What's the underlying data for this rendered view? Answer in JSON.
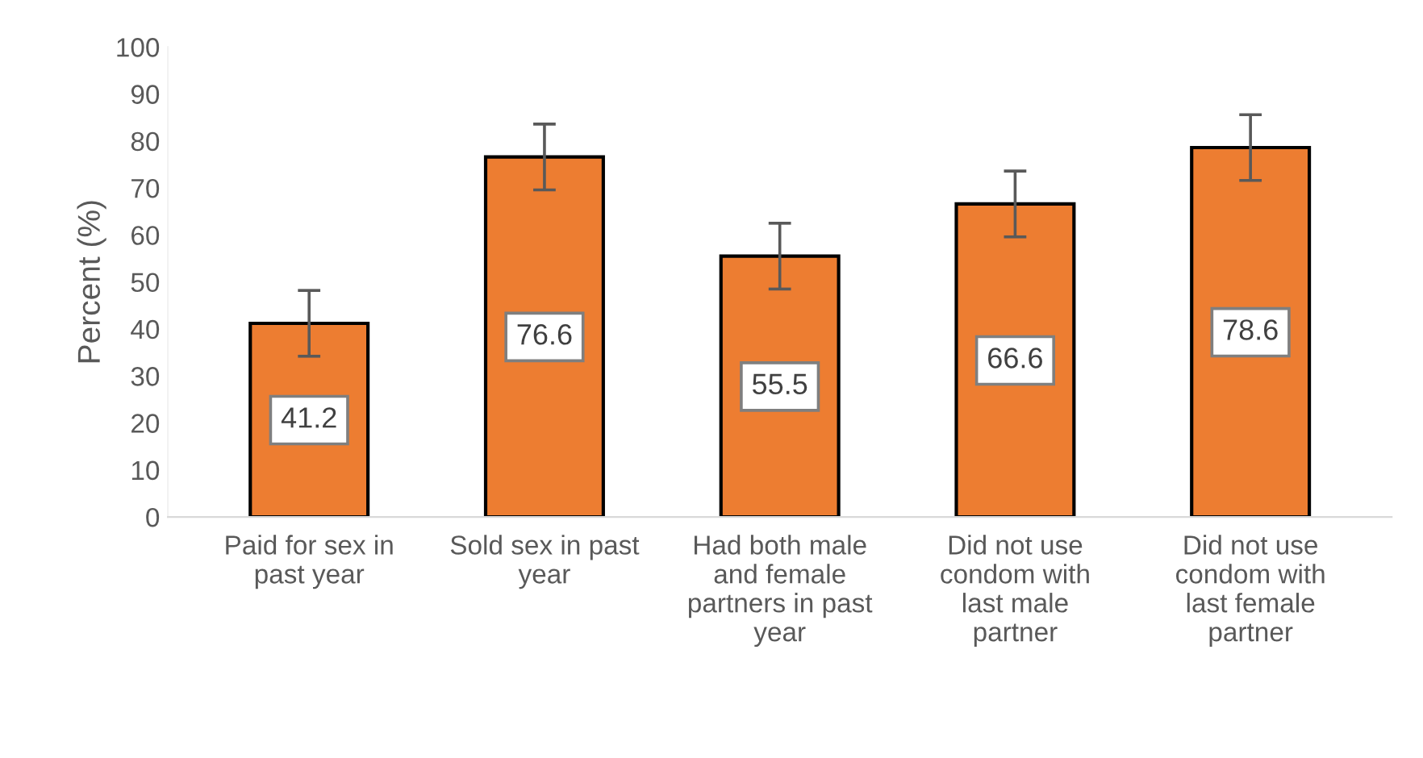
{
  "chart_data": {
    "type": "bar",
    "ylabel": "Percent (%)",
    "categories": [
      "Paid for sex in\npast year",
      "Sold sex in past\nyear",
      "Had both male\nand female\npartners in past\nyear",
      "Did not use\ncondom with\nlast male\npartner",
      "Did not use\ncondom with\nlast female\npartner"
    ],
    "values": [
      41.2,
      76.6,
      55.5,
      66.6,
      78.6
    ],
    "errors": [
      7,
      7,
      7,
      7,
      7
    ],
    "color": "#ed7d31",
    "data_labels": true,
    "ylim": [
      0,
      100
    ],
    "yticks": [
      0,
      10,
      20,
      30,
      40,
      50,
      60,
      70,
      80,
      90,
      100
    ],
    "grid": false,
    "legend": false
  }
}
